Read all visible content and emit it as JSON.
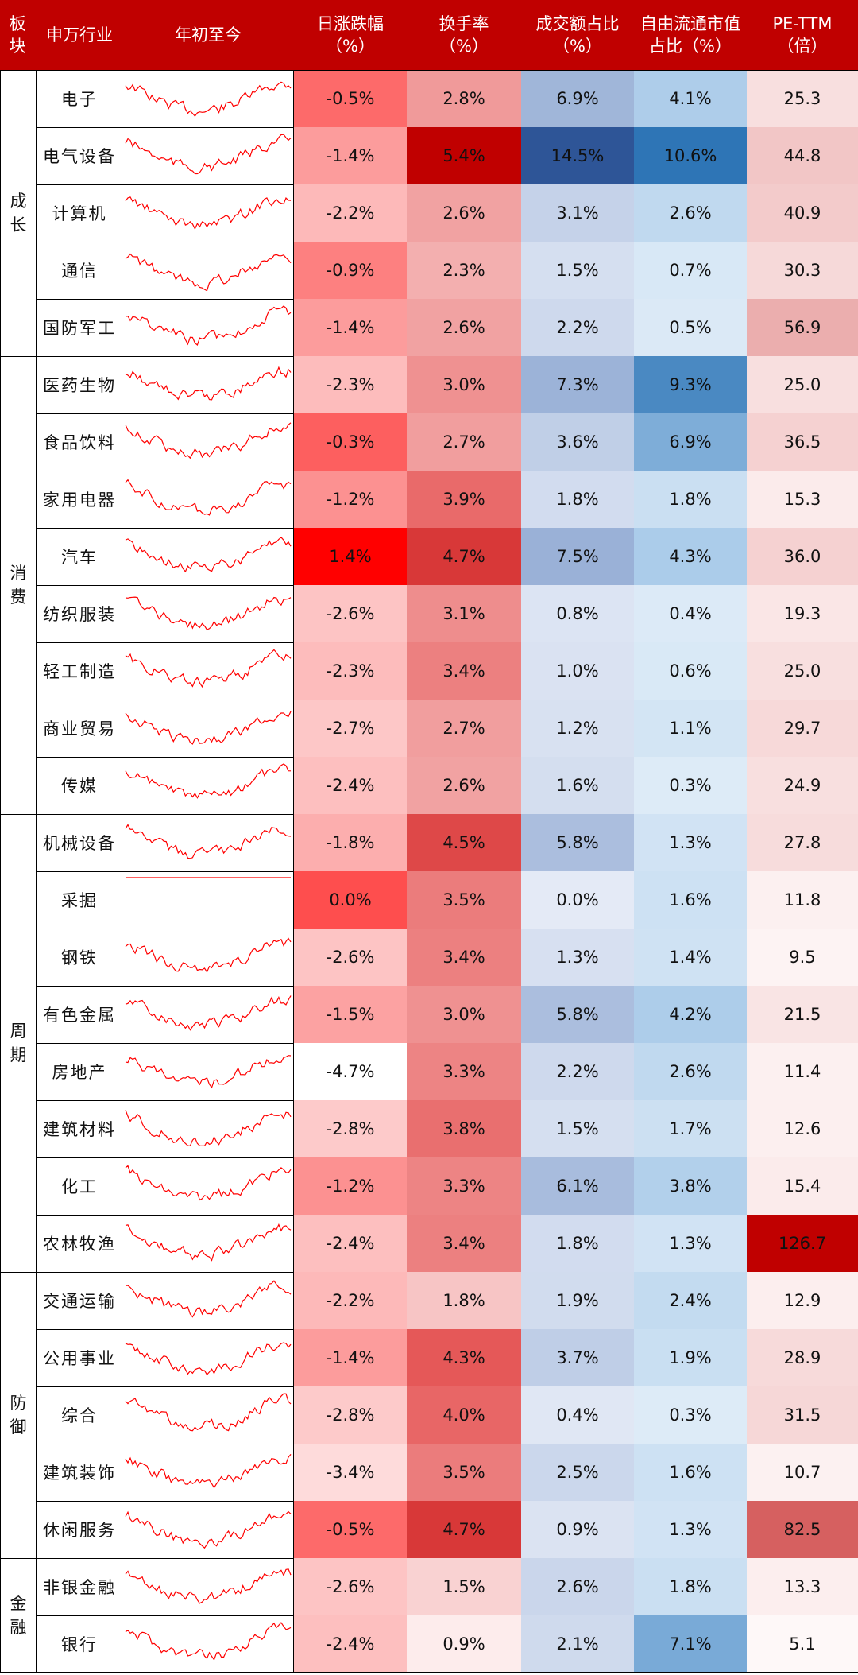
{
  "headers": {
    "sector": [
      "板",
      "块"
    ],
    "industry": [
      "申万行业"
    ],
    "ytd": [
      "年初至今"
    ],
    "daily_change": [
      "日涨跌幅",
      "（%）"
    ],
    "turnover": [
      "换手率",
      "（%）"
    ],
    "volume_share": [
      "成交额占比",
      "（%）"
    ],
    "mktcap_share": [
      "自由流通市值",
      "占比（%）"
    ],
    "pe": [
      "PE-TTM",
      "（倍）"
    ]
  },
  "sectors": [
    {
      "label": [
        "成",
        "长"
      ],
      "rows": 5
    },
    {
      "label": [
        "消",
        "费"
      ],
      "rows": 8
    },
    {
      "label": [
        "周",
        "期"
      ],
      "rows": 8
    },
    {
      "label": [
        "防",
        "御"
      ],
      "rows": 5
    },
    {
      "label": [
        "金",
        "融"
      ],
      "rows": 2
    }
  ],
  "rows": [
    {
      "industry": "电子",
      "daily": "-0.5%",
      "turnover": "2.8%",
      "volume_share": "6.9%",
      "mktcap_share": "4.1%",
      "pe": "25.3"
    },
    {
      "industry": "电气设备",
      "daily": "-1.4%",
      "turnover": "5.4%",
      "volume_share": "14.5%",
      "mktcap_share": "10.6%",
      "pe": "44.8"
    },
    {
      "industry": "计算机",
      "daily": "-2.2%",
      "turnover": "2.6%",
      "volume_share": "3.1%",
      "mktcap_share": "2.6%",
      "pe": "40.9"
    },
    {
      "industry": "通信",
      "daily": "-0.9%",
      "turnover": "2.3%",
      "volume_share": "1.5%",
      "mktcap_share": "0.7%",
      "pe": "30.3"
    },
    {
      "industry": "国防军工",
      "daily": "-1.4%",
      "turnover": "2.6%",
      "volume_share": "2.2%",
      "mktcap_share": "0.5%",
      "pe": "56.9"
    },
    {
      "industry": "医药生物",
      "daily": "-2.3%",
      "turnover": "3.0%",
      "volume_share": "7.3%",
      "mktcap_share": "9.3%",
      "pe": "25.0"
    },
    {
      "industry": "食品饮料",
      "daily": "-0.3%",
      "turnover": "2.7%",
      "volume_share": "3.6%",
      "mktcap_share": "6.9%",
      "pe": "36.5"
    },
    {
      "industry": "家用电器",
      "daily": "-1.2%",
      "turnover": "3.9%",
      "volume_share": "1.8%",
      "mktcap_share": "1.8%",
      "pe": "15.3"
    },
    {
      "industry": "汽车",
      "daily": "1.4%",
      "turnover": "4.7%",
      "volume_share": "7.5%",
      "mktcap_share": "4.3%",
      "pe": "36.0"
    },
    {
      "industry": "纺织服装",
      "daily": "-2.6%",
      "turnover": "3.1%",
      "volume_share": "0.8%",
      "mktcap_share": "0.4%",
      "pe": "19.3"
    },
    {
      "industry": "轻工制造",
      "daily": "-2.3%",
      "turnover": "3.4%",
      "volume_share": "1.0%",
      "mktcap_share": "0.6%",
      "pe": "25.0"
    },
    {
      "industry": "商业贸易",
      "daily": "-2.7%",
      "turnover": "2.7%",
      "volume_share": "1.2%",
      "mktcap_share": "1.1%",
      "pe": "29.7"
    },
    {
      "industry": "传媒",
      "daily": "-2.4%",
      "turnover": "2.6%",
      "volume_share": "1.6%",
      "mktcap_share": "0.3%",
      "pe": "24.9"
    },
    {
      "industry": "机械设备",
      "daily": "-1.8%",
      "turnover": "4.5%",
      "volume_share": "5.8%",
      "mktcap_share": "1.3%",
      "pe": "27.8"
    },
    {
      "industry": "采掘",
      "daily": "0.0%",
      "turnover": "3.5%",
      "volume_share": "0.0%",
      "mktcap_share": "1.6%",
      "pe": "11.8"
    },
    {
      "industry": "钢铁",
      "daily": "-2.6%",
      "turnover": "3.4%",
      "volume_share": "1.3%",
      "mktcap_share": "1.4%",
      "pe": "9.5"
    },
    {
      "industry": "有色金属",
      "daily": "-1.5%",
      "turnover": "3.0%",
      "volume_share": "5.8%",
      "mktcap_share": "4.2%",
      "pe": "21.5"
    },
    {
      "industry": "房地产",
      "daily": "-4.7%",
      "turnover": "3.3%",
      "volume_share": "2.2%",
      "mktcap_share": "2.6%",
      "pe": "11.4"
    },
    {
      "industry": "建筑材料",
      "daily": "-2.8%",
      "turnover": "3.8%",
      "volume_share": "1.5%",
      "mktcap_share": "1.7%",
      "pe": "12.6"
    },
    {
      "industry": "化工",
      "daily": "-1.2%",
      "turnover": "3.3%",
      "volume_share": "6.1%",
      "mktcap_share": "3.8%",
      "pe": "15.4"
    },
    {
      "industry": "农林牧渔",
      "daily": "-2.4%",
      "turnover": "3.4%",
      "volume_share": "1.8%",
      "mktcap_share": "1.3%",
      "pe": "126.7"
    },
    {
      "industry": "交通运输",
      "daily": "-2.2%",
      "turnover": "1.8%",
      "volume_share": "1.9%",
      "mktcap_share": "2.4%",
      "pe": "12.9"
    },
    {
      "industry": "公用事业",
      "daily": "-1.4%",
      "turnover": "4.3%",
      "volume_share": "3.7%",
      "mktcap_share": "1.9%",
      "pe": "28.9"
    },
    {
      "industry": "综合",
      "daily": "-2.8%",
      "turnover": "4.0%",
      "volume_share": "0.4%",
      "mktcap_share": "0.3%",
      "pe": "31.5"
    },
    {
      "industry": "建筑装饰",
      "daily": "-3.4%",
      "turnover": "3.5%",
      "volume_share": "2.5%",
      "mktcap_share": "1.6%",
      "pe": "10.7"
    },
    {
      "industry": "休闲服务",
      "daily": "-0.5%",
      "turnover": "4.7%",
      "volume_share": "0.9%",
      "mktcap_share": "1.3%",
      "pe": "82.5"
    },
    {
      "industry": "非银金融",
      "daily": "-2.6%",
      "turnover": "1.5%",
      "volume_share": "2.6%",
      "mktcap_share": "1.8%",
      "pe": "13.3"
    },
    {
      "industry": "银行",
      "daily": "-2.4%",
      "turnover": "0.9%",
      "volume_share": "2.1%",
      "mktcap_share": "7.1%",
      "pe": "5.1"
    }
  ],
  "colors": {
    "header_bg": "#c00000",
    "header_text": "#ffffff",
    "red_max": "#ff0000",
    "red_dark": "#c00000",
    "blue_dark": "#2e5597",
    "blue_strong": "#2e75b6",
    "sparkline": "#ff0000",
    "grid": "#000000"
  }
}
